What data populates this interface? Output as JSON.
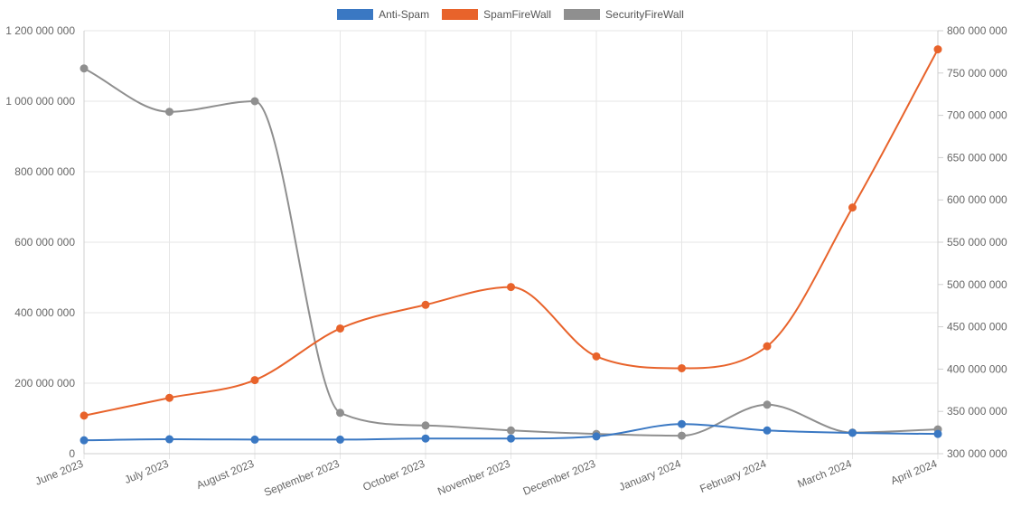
{
  "chart_data": {
    "type": "line",
    "categories": [
      "June 2023",
      "July 2023",
      "August 2023",
      "September 2023",
      "October 2023",
      "November 2023",
      "December 2023",
      "January 2024",
      "February 2024",
      "March 2024",
      "April 2024"
    ],
    "series": [
      {
        "name": "Anti-Spam",
        "axis": "left",
        "color": "#3a78c3",
        "values": [
          38000000,
          41000000,
          40000000,
          40000000,
          43000000,
          43000000,
          49000000,
          84000000,
          66000000,
          59000000,
          56000000
        ]
      },
      {
        "name": "SpamFireWall",
        "axis": "right",
        "color": "#e8632b",
        "values": [
          345000000,
          366000000,
          387000000,
          448000000,
          476000000,
          497000000,
          415000000,
          401000000,
          427000000,
          591000000,
          778000000
        ]
      },
      {
        "name": "SecurityFireWall",
        "axis": "left",
        "color": "#8f8f8f",
        "values": [
          1093000000,
          970000000,
          1000000000,
          116000000,
          80000000,
          66000000,
          56000000,
          51000000,
          139000000,
          60000000,
          69000000
        ]
      }
    ],
    "ylim_left": [
      0,
      1200000000
    ],
    "yticks_left": [
      "0",
      "200 000 000",
      "400 000 000",
      "600 000 000",
      "800 000 000",
      "1 000 000 000",
      "1 200 000 000"
    ],
    "ylim_right": [
      300000000,
      800000000
    ],
    "yticks_right": [
      "300 000 000",
      "350 000 000",
      "400 000 000",
      "450 000 000",
      "500 000 000",
      "550 000 000",
      "600 000 000",
      "650 000 000",
      "700 000 000",
      "750 000 000",
      "800 000 000"
    ],
    "grid": true,
    "legend_position": "top"
  }
}
